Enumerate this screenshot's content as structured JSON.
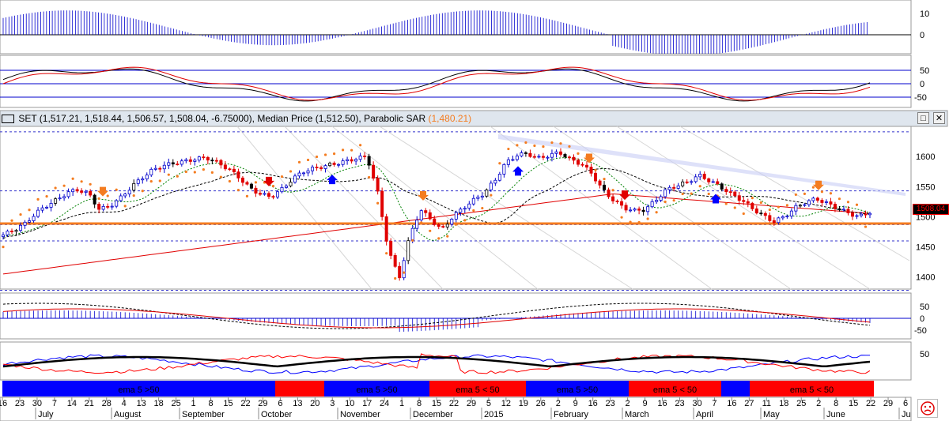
{
  "header": {
    "title": "SET (1,517.21, 1,518.44, 1,506.57, 1,508.04, -6.75000), Median Price (1,512.50), Parabolic SAR",
    "sar_value": "(1,480.21)"
  },
  "last_price_label": "1508.04",
  "window_buttons": {
    "maximize": "□",
    "close": "✕"
  },
  "axes": {
    "panel1_ticks": [
      "10",
      "0"
    ],
    "panel2_ticks": [
      "50",
      "0",
      "-50"
    ],
    "price_ticks": [
      "1600",
      "1550",
      "1500",
      "1450",
      "1400"
    ],
    "panel4_ticks": [
      "50",
      "0",
      "-50"
    ],
    "panel5_ticks": [
      "50"
    ]
  },
  "date_axis": {
    "day_labels": [
      "16",
      "23",
      "30",
      "7",
      "14",
      "21",
      "28",
      "4",
      "13",
      "18",
      "25",
      "1",
      "8",
      "15",
      "22",
      "29",
      "6",
      "13",
      "20",
      "3",
      "10",
      "17",
      "24",
      "1",
      "8",
      "15",
      "22",
      "29",
      "5",
      "12",
      "19",
      "26",
      "2",
      "9",
      "16",
      "23",
      "2",
      "9",
      "16",
      "23",
      "30",
      "7",
      "16",
      "27",
      "11",
      "18",
      "25",
      "2",
      "8",
      "15",
      "22",
      "29",
      "6"
    ],
    "month_labels": [
      "July",
      "August",
      "September",
      "October",
      "November",
      "December",
      "2015",
      "February",
      "March",
      "April",
      "May",
      "June",
      "Ju"
    ]
  },
  "ema_bar": {
    "labels": [
      "ema 5 >50",
      "ema 5 >50",
      "ema 5 < 50",
      "ema 5 >50",
      "ema 5 < 50",
      "ema 5 < 50"
    ]
  },
  "colors": {
    "up": "#0000cc",
    "down": "#e00000",
    "neutral": "#000000",
    "sar": "#f47c20",
    "support": "#f47c20",
    "sma_long": "#e00000",
    "sma_mid": "#000000",
    "sma_short": "#008000",
    "ema_bull": "#0000ff",
    "ema_bear": "#ff0000"
  },
  "chart_data": {
    "type": "line",
    "title": "SET",
    "ohlc_last": {
      "open": 1517.21,
      "high": 1518.44,
      "low": 1506.57,
      "close": 1508.04,
      "change": -6.75
    },
    "median_price": 1512.5,
    "parabolic_sar": 1480.21,
    "ylim": [
      1380,
      1650
    ],
    "price_ticks": [
      1600,
      1550,
      1500,
      1450,
      1400
    ],
    "horizontal_lines": [
      1641,
      1543,
      1487,
      1460,
      1378
    ],
    "close_series": [
      1470,
      1478,
      1488,
      1505,
      1518,
      1528,
      1540,
      1545,
      1538,
      1512,
      1518,
      1532,
      1550,
      1565,
      1578,
      1585,
      1589,
      1592,
      1596,
      1598,
      1590,
      1580,
      1566,
      1548,
      1538,
      1533,
      1545,
      1562,
      1575,
      1580,
      1584,
      1588,
      1592,
      1597,
      1600,
      1540,
      1445,
      1398,
      1468,
      1512,
      1495,
      1478,
      1500,
      1515,
      1528,
      1540,
      1562,
      1590,
      1602,
      1605,
      1597,
      1602,
      1607,
      1595,
      1588,
      1572,
      1545,
      1528,
      1515,
      1510,
      1512,
      1528,
      1545,
      1552,
      1558,
      1569,
      1560,
      1550,
      1538,
      1528,
      1514,
      1502,
      1492,
      1500,
      1515,
      1524,
      1530,
      1522,
      1514,
      1506,
      1500,
      1508
    ]
  }
}
